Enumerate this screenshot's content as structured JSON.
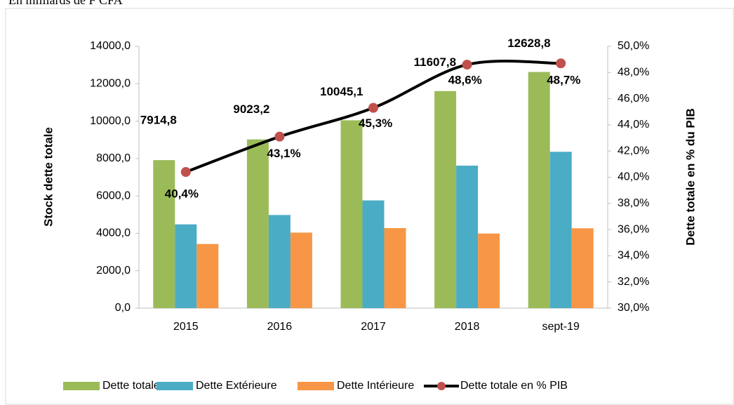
{
  "chart_data": {
    "type": "bar",
    "note": "En milliards de F CFA",
    "categories": [
      "2015",
      "2016",
      "2017",
      "2018",
      "sept-19"
    ],
    "ylabel": "Stock  dette  totale",
    "y2label": "Dette totale en % du PIB",
    "ylim": [
      0,
      14000
    ],
    "yticks": [
      {
        "value": 0,
        "label": "0,0"
      },
      {
        "value": 2000,
        "label": "2000,0"
      },
      {
        "value": 4000,
        "label": "4000,0"
      },
      {
        "value": 6000,
        "label": "6000,0"
      },
      {
        "value": 8000,
        "label": "8000,0"
      },
      {
        "value": 10000,
        "label": "10000,0"
      },
      {
        "value": 12000,
        "label": "12000,0"
      },
      {
        "value": 14000,
        "label": "14000,0"
      }
    ],
    "y2lim": [
      30,
      50
    ],
    "y2ticks": [
      {
        "value": 30,
        "label": "30,0%"
      },
      {
        "value": 32,
        "label": "32,0%"
      },
      {
        "value": 34,
        "label": "34,0%"
      },
      {
        "value": 36,
        "label": "36,0%"
      },
      {
        "value": 38,
        "label": "38,0%"
      },
      {
        "value": 40,
        "label": "40,0%"
      },
      {
        "value": 42,
        "label": "42,0%"
      },
      {
        "value": 44,
        "label": "44,0%"
      },
      {
        "value": 46,
        "label": "46,0%"
      },
      {
        "value": 48,
        "label": "48,0%"
      },
      {
        "value": 50,
        "label": "50,0%"
      }
    ],
    "series": [
      {
        "name": "Dette totale",
        "type": "bar",
        "color": "#9bbb59",
        "values": [
          7914.8,
          9023.2,
          10045.1,
          11607.8,
          12628.8
        ],
        "value_labels": [
          "7914,8",
          "9023,2",
          "10045,1",
          "11607,8",
          "12628,8"
        ]
      },
      {
        "name": "Dette Extérieure",
        "type": "bar",
        "color": "#4bacc6",
        "values": [
          4480,
          4980,
          5760,
          7620,
          8360
        ]
      },
      {
        "name": "Dette Intérieure",
        "type": "bar",
        "color": "#f79646",
        "values": [
          3430,
          4040,
          4280,
          3990,
          4270
        ]
      },
      {
        "name": "Dette totale en % PIB",
        "type": "line",
        "axis": "y2",
        "color": "#000000",
        "marker_color": "#c0504d",
        "values": [
          40.4,
          43.1,
          45.3,
          48.6,
          48.7
        ],
        "value_labels": [
          "40,4%",
          "43,1%",
          "45,3%",
          "48,6%",
          "48,7%"
        ]
      }
    ]
  }
}
